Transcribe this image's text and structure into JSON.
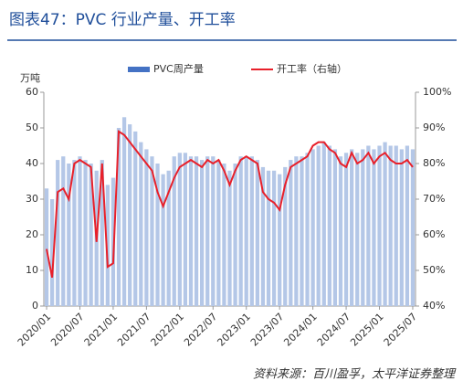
{
  "chart_data": {
    "type": "bar-line",
    "title": "图表47：PVC 行业产量、开工率",
    "y_label": "万吨",
    "source": "资料来源：百川盈孚，太平洋证券整理",
    "categories": [
      "2020/01",
      null,
      null,
      null,
      null,
      null,
      "2020/07",
      null,
      null,
      null,
      null,
      null,
      "2021/01",
      null,
      null,
      null,
      null,
      null,
      "2021/07",
      null,
      null,
      null,
      null,
      null,
      "2022/01",
      null,
      null,
      null,
      null,
      null,
      "2022/07",
      null,
      null,
      null,
      null,
      null,
      "2023/01",
      null,
      null,
      null,
      null,
      null,
      "2023/07",
      null,
      null,
      null,
      null,
      null,
      "2024/01",
      null,
      null,
      null,
      null,
      null,
      "2024/07",
      null,
      null,
      null,
      null,
      null,
      "2025/01",
      null,
      null,
      null,
      null,
      null,
      "2025/07"
    ],
    "series": [
      {
        "name": "PVC周产量",
        "type": "bar",
        "color": "#b4c7e7",
        "legend_color": "#4472c4",
        "values": [
          33,
          30,
          41,
          42,
          40,
          41,
          42,
          41,
          40,
          38,
          41,
          34,
          36,
          50,
          53,
          51,
          49,
          46,
          44,
          42,
          40,
          37,
          38,
          42,
          43,
          43,
          42,
          42,
          41,
          42,
          42,
          41,
          40,
          38,
          40,
          42,
          42,
          42,
          41,
          39,
          38,
          38,
          37,
          39,
          41,
          42,
          42,
          43,
          44,
          45,
          46,
          45,
          44,
          42,
          43,
          44,
          43,
          44,
          45,
          44,
          45,
          46,
          45,
          45,
          44,
          45,
          44
        ]
      },
      {
        "name": "开工率（右轴）",
        "type": "line",
        "axis": "y2",
        "color": "#e8202a",
        "values": [
          56,
          48,
          72,
          73,
          70,
          80,
          81,
          80,
          79,
          58,
          80,
          51,
          52,
          89,
          88,
          86,
          84,
          82,
          80,
          78,
          72,
          68,
          72,
          76,
          79,
          80,
          81,
          80,
          79,
          81,
          80,
          81,
          78,
          74,
          78,
          81,
          82,
          81,
          80,
          72,
          70,
          69,
          67,
          74,
          79,
          80,
          81,
          82,
          85,
          86,
          86,
          84,
          83,
          80,
          79,
          83,
          80,
          81,
          83,
          80,
          82,
          83,
          81,
          80,
          80,
          81,
          79
        ]
      }
    ],
    "ylim": [
      0,
      60
    ],
    "yticks": [
      0,
      10,
      20,
      30,
      40,
      50,
      60
    ],
    "y2lim": [
      40,
      100
    ],
    "y2ticks": [
      {
        "value": 40,
        "label": "40%"
      },
      {
        "value": 50,
        "label": "50%"
      },
      {
        "value": 60,
        "label": "60%"
      },
      {
        "value": 70,
        "label": "70%"
      },
      {
        "value": 80,
        "label": "80%"
      },
      {
        "value": 90,
        "label": "90%"
      },
      {
        "value": 100,
        "label": "100%"
      }
    ]
  }
}
